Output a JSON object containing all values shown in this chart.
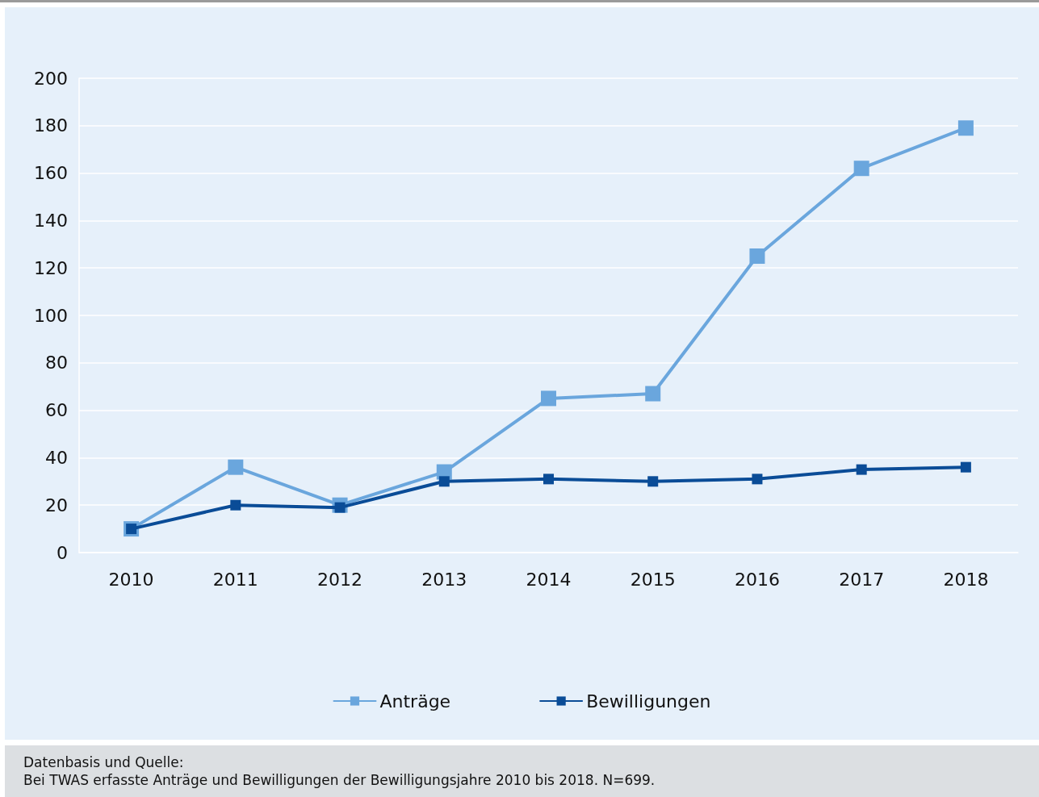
{
  "chart_data": {
    "type": "line",
    "categories": [
      "2010",
      "2011",
      "2012",
      "2013",
      "2014",
      "2015",
      "2016",
      "2017",
      "2018"
    ],
    "series": [
      {
        "name": "Anträge",
        "color": "#6aa6dd",
        "values": [
          10,
          36,
          20,
          34,
          65,
          67,
          125,
          162,
          179
        ]
      },
      {
        "name": "Bewilligungen",
        "color": "#0a4c97",
        "values": [
          10,
          20,
          19,
          30,
          31,
          30,
          31,
          35,
          36
        ]
      }
    ],
    "ylim": [
      0,
      200
    ],
    "yticks": [
      0,
      20,
      40,
      60,
      80,
      100,
      120,
      140,
      160,
      180,
      200
    ],
    "grid": "y",
    "legend": "bottom",
    "marker": "square",
    "line_style": "solid",
    "annotations": [
      "Datenbasis und Quelle:",
      "Bei TWAS erfasste Anträge und Bewilligungen der Bewilligungsjahre 2010 bis 2018. N=699."
    ]
  }
}
